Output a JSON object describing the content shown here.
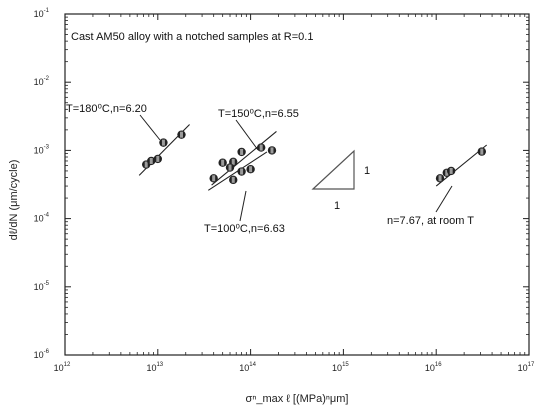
{
  "chart_data": {
    "type": "scatter",
    "title": "Cast AM50 alloy with a notched samples at R=0.1",
    "xlabel": "σⁿ_max ℓ [(MPa)ⁿμm]",
    "ylabel": "dℓ/dN (μm/cycle)",
    "x_scale": "log",
    "y_scale": "log",
    "xlim": [
      1000000000000.0,
      1e+17
    ],
    "ylim": [
      1e-06,
      0.1
    ],
    "x_ticks": [
      {
        "base": "10",
        "exp": "12"
      },
      {
        "base": "10",
        "exp": "13"
      },
      {
        "base": "10",
        "exp": "14"
      },
      {
        "base": "10",
        "exp": "15"
      },
      {
        "base": "10",
        "exp": "16"
      },
      {
        "base": "10",
        "exp": "17"
      }
    ],
    "y_ticks": [
      {
        "base": "10",
        "exp": "-1"
      },
      {
        "base": "10",
        "exp": "-2"
      },
      {
        "base": "10",
        "exp": "-3"
      },
      {
        "base": "10",
        "exp": "-4"
      },
      {
        "base": "10",
        "exp": "-5"
      },
      {
        "base": "10",
        "exp": "-6"
      }
    ],
    "grid": false,
    "series": [
      {
        "name": "T=180⁰C,n=6.20",
        "points": [
          [
            7500000000000.0,
            0.00062
          ],
          [
            8500000000000.0,
            0.0007
          ],
          [
            10000000000000.0,
            0.00075
          ],
          [
            11500000000000.0,
            0.0013
          ],
          [
            18000000000000.0,
            0.0017
          ]
        ],
        "fit": [
          [
            6300000000000.0,
            0.00043
          ],
          [
            22000000000000.0,
            0.0024
          ]
        ]
      },
      {
        "name": "T=150⁰C,n=6.55",
        "points": [
          [
            50000000000000.0,
            0.00066
          ],
          [
            65000000000000.0,
            0.00068
          ],
          [
            80000000000000.0,
            0.00095
          ],
          [
            130000000000000.0,
            0.0011
          ],
          [
            170000000000000.0,
            0.001
          ]
        ],
        "fit": [
          [
            38000000000000.0,
            0.00031
          ],
          [
            190000000000000.0,
            0.0019
          ]
        ]
      },
      {
        "name": "T=100⁰C,n=6.63",
        "points": [
          [
            40000000000000.0,
            0.00039
          ],
          [
            65000000000000.0,
            0.00037
          ],
          [
            80000000000000.0,
            0.00049
          ],
          [
            100000000000000.0,
            0.00053
          ],
          [
            60000000000000.0,
            0.00056
          ]
        ],
        "fit": [
          [
            35000000000000.0,
            0.00026
          ],
          [
            150000000000000.0,
            0.00095
          ]
        ]
      },
      {
        "name": "n=7.67, at room T",
        "points": [
          [
            1.1e+16,
            0.00039
          ],
          [
            1.3e+16,
            0.00047
          ],
          [
            1.45e+16,
            0.0005
          ],
          [
            3.1e+16,
            0.00096
          ]
        ],
        "fit": [
          [
            1e+16,
            0.0003
          ],
          [
            3.5e+16,
            0.0012
          ]
        ]
      }
    ],
    "slope_triangle": {
      "rise_label": "1",
      "run_label": "1"
    },
    "annotations": [
      "T=180⁰C,n=6.20",
      "T=150⁰C,n=6.55",
      "T=100⁰C,n=6.63",
      "n=7.67, at room T"
    ]
  }
}
